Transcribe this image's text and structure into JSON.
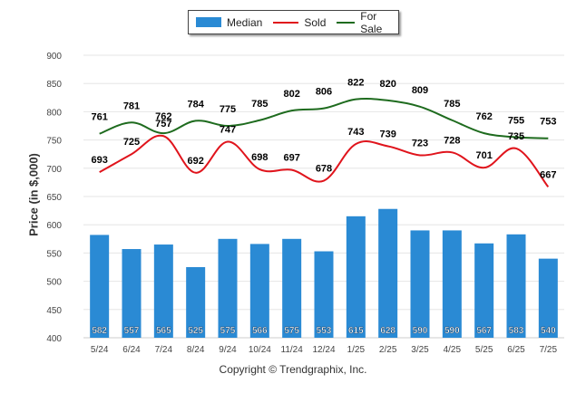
{
  "legend": {
    "median": "Median",
    "sold": "Sold",
    "for_sale": "For Sale"
  },
  "footer": "Copyright © Trendgraphix, Inc.",
  "colors": {
    "median": "#2a8ad4",
    "sold": "#e0141c",
    "for_sale": "#1e6b1e",
    "grid": "#e6e6e6",
    "axis_text": "#444444"
  },
  "chart_data": {
    "type": "bar",
    "ylabel": "Price (in $,000)",
    "ylim": [
      400,
      900
    ],
    "yticks": [
      400,
      450,
      500,
      550,
      600,
      650,
      700,
      750,
      800,
      850,
      900
    ],
    "categories": [
      "5/24",
      "6/24",
      "7/24",
      "8/24",
      "9/24",
      "10/24",
      "11/24",
      "12/24",
      "1/25",
      "2/25",
      "3/25",
      "4/25",
      "5/25",
      "6/25",
      "7/25"
    ],
    "grid": true,
    "legend_position": "top-center",
    "series": [
      {
        "name": "Median",
        "type": "bar",
        "values": [
          582,
          557,
          565,
          525,
          575,
          566,
          575,
          553,
          615,
          628,
          590,
          590,
          567,
          583,
          540
        ]
      },
      {
        "name": "Sold",
        "type": "line",
        "values": [
          693,
          725,
          757,
          692,
          747,
          698,
          697,
          678,
          743,
          739,
          723,
          728,
          701,
          735,
          667
        ]
      },
      {
        "name": "For Sale",
        "type": "line",
        "values": [
          761,
          781,
          762,
          784,
          775,
          785,
          802,
          806,
          822,
          820,
          809,
          785,
          762,
          755,
          753
        ]
      }
    ]
  }
}
